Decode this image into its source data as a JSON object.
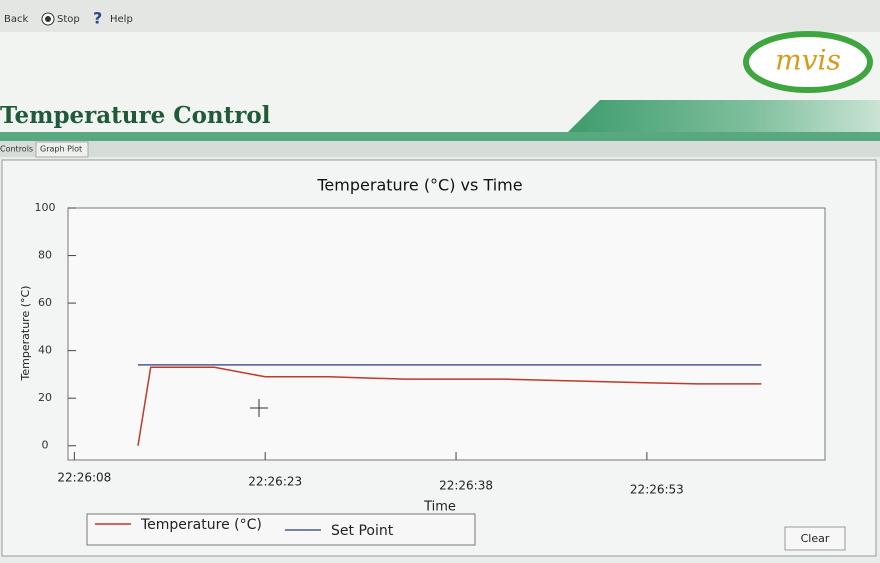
{
  "toolbar": {
    "back": "Back",
    "stop": "Stop",
    "help": "Help"
  },
  "header": {
    "title": "Temperature Control",
    "logo": "mvis"
  },
  "tabs": [
    "Controls",
    "Graph Plot"
  ],
  "chart_data": {
    "type": "line",
    "title": "Temperature (°C) vs Time",
    "x_label": "Time",
    "y_label": "Temperature (°C)",
    "xlim": [
      80767.5,
      80827
    ],
    "ylim": [
      -6,
      100
    ],
    "xticks": [
      {
        "value": 80768,
        "label": "22:26:08"
      },
      {
        "value": 80783,
        "label": "22:26:23"
      },
      {
        "value": 80798,
        "label": "22:26:38"
      },
      {
        "value": 80813,
        "label": "22:26:53"
      }
    ],
    "yticks": [
      0,
      20,
      40,
      60,
      80,
      100
    ],
    "series": [
      {
        "name": "Temperature (°C)",
        "color": "#c0392b",
        "x": [
          80773,
          80774,
          80779,
          80783,
          80788,
          80794,
          80802,
          80809,
          80817,
          80822
        ],
        "values": [
          0,
          33,
          33,
          29,
          29,
          28,
          28,
          27,
          26,
          26
        ]
      },
      {
        "name": "Set Point",
        "color": "#4a5a8a",
        "x": [
          80773,
          80822
        ],
        "values": [
          34,
          34
        ]
      }
    ]
  },
  "buttons": {
    "clear": "Clear"
  }
}
